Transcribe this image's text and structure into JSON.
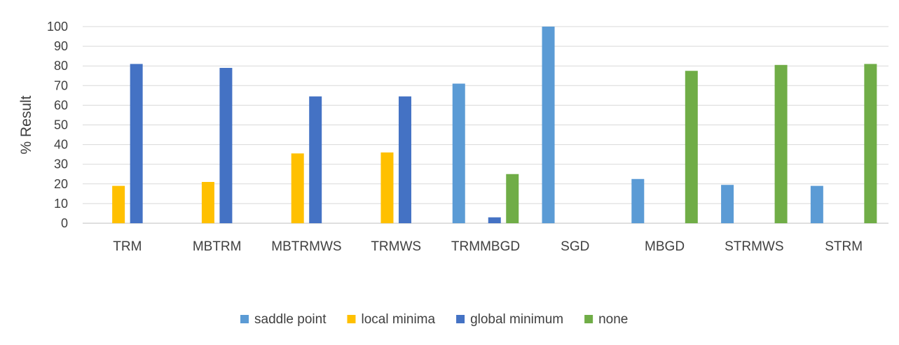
{
  "chart_data": {
    "type": "bar",
    "title": "",
    "xlabel": "",
    "ylabel": "% Result",
    "ylim": [
      0,
      100
    ],
    "yticks": [
      0,
      10,
      20,
      30,
      40,
      50,
      60,
      70,
      80,
      90,
      100
    ],
    "grid": true,
    "legend_position": "bottom",
    "categories": [
      "TRM",
      "MBTRM",
      "MBTRMWS",
      "TRMWS",
      "TRMMBGD",
      "SGD",
      "MBGD",
      "STRMWS",
      "STRM"
    ],
    "series": [
      {
        "name": "saddle point",
        "color": "#5b9bd5",
        "values": [
          0,
          0,
          0,
          0,
          71,
          100,
          22.5,
          19.5,
          19
        ]
      },
      {
        "name": "local minima",
        "color": "#ffc000",
        "values": [
          19,
          21,
          35.5,
          36,
          0,
          0,
          0,
          0,
          0
        ]
      },
      {
        "name": "global minimum",
        "color": "#4472c4",
        "values": [
          81,
          79,
          64.5,
          64.5,
          3,
          0,
          0,
          0,
          0
        ]
      },
      {
        "name": "none",
        "color": "#70ad47",
        "values": [
          0,
          0,
          0,
          0,
          25,
          0,
          77.5,
          80.5,
          81
        ]
      }
    ]
  }
}
